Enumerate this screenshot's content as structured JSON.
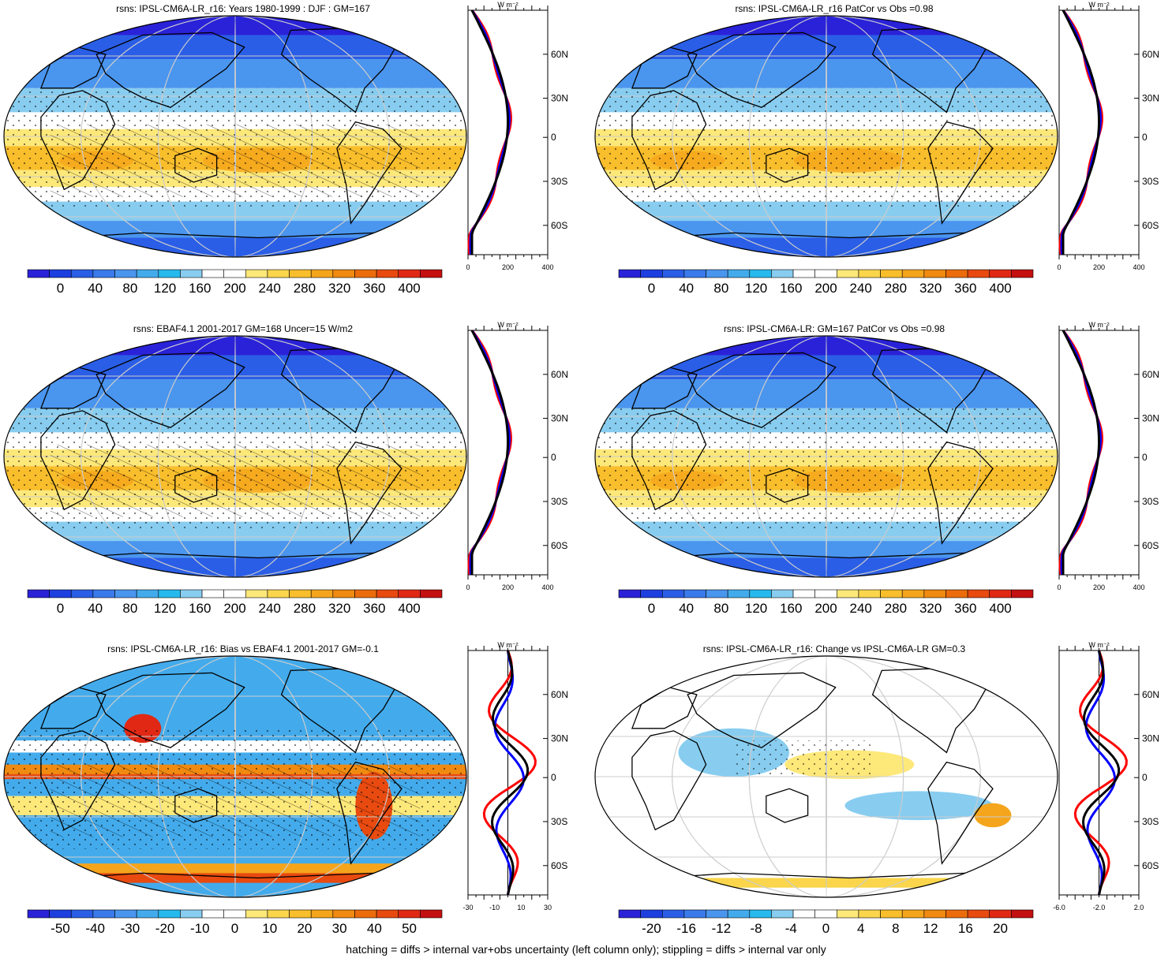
{
  "colors": {
    "abs": [
      "#2a22d8",
      "#1d3fe0",
      "#2a5ee6",
      "#3a7aea",
      "#4a95ee",
      "#43abec",
      "#26b9ee",
      "#88cdf0",
      "#ffffff",
      "#ffffff",
      "#fde87a",
      "#fbd64c",
      "#f9be2c",
      "#f5a51c",
      "#f08a10",
      "#ec6c0c",
      "#e84a10",
      "#e02814",
      "#c41010"
    ],
    "bias": [
      "#2a22d8",
      "#1d3fe0",
      "#2a5ee6",
      "#3a7aea",
      "#4a95ee",
      "#43abec",
      "#26b9ee",
      "#88cdf0",
      "#ffffff",
      "#ffffff",
      "#fde87a",
      "#fbd64c",
      "#f9be2c",
      "#f5a51c",
      "#f08a10",
      "#ec6c0c",
      "#e84a10",
      "#e02814",
      "#c41010"
    ],
    "ocean_cold": "#2f5fe4",
    "ocean_mid": "#4aa8ee",
    "warm": "#f9be2c",
    "land_outline": "#000000",
    "curve_model": "#ff0000",
    "curve_obs": "#0000ff",
    "curve_mean": "#000000"
  },
  "panels": [
    {
      "title": "rsns: IPSL-CM6A-LR_r16: Years 1980-1999 : DJF : GM=167",
      "kind": "abs",
      "colorbar_labels": [
        "0",
        "40",
        "80",
        "120",
        "160",
        "200",
        "240",
        "280",
        "320",
        "360",
        "400"
      ],
      "zonal_unit": "W m⁻²",
      "zonal_lat_labels": [
        "60N",
        "30N",
        "0",
        "30S",
        "60S"
      ],
      "zonal_x_labels": [
        "0",
        "200",
        "400"
      ]
    },
    {
      "title": "rsns: IPSL-CM6A-LR_r16 PatCor vs Obs =0.98",
      "kind": "abs",
      "colorbar_labels": [
        "0",
        "40",
        "80",
        "120",
        "160",
        "200",
        "240",
        "280",
        "320",
        "360",
        "400"
      ],
      "zonal_unit": "W m⁻²",
      "zonal_lat_labels": [
        "60N",
        "30N",
        "0",
        "30S",
        "60S"
      ],
      "zonal_x_labels": [
        "0",
        "200",
        "400"
      ]
    },
    {
      "title": "rsns: EBAF4.1 2001-2017 GM=168 Uncer=15 W/m2",
      "kind": "abs",
      "colorbar_labels": [
        "0",
        "40",
        "80",
        "120",
        "160",
        "200",
        "240",
        "280",
        "320",
        "360",
        "400"
      ],
      "zonal_unit": "W m⁻²",
      "zonal_lat_labels": [
        "60N",
        "30N",
        "0",
        "30S",
        "60S"
      ],
      "zonal_x_labels": [
        "0",
        "200",
        "400"
      ]
    },
    {
      "title": "rsns: IPSL-CM6A-LR: GM=167 PatCor vs Obs =0.98",
      "kind": "abs",
      "colorbar_labels": [
        "0",
        "40",
        "80",
        "120",
        "160",
        "200",
        "240",
        "280",
        "320",
        "360",
        "400"
      ],
      "zonal_unit": "W m⁻²",
      "zonal_lat_labels": [
        "60N",
        "30N",
        "0",
        "30S",
        "60S"
      ],
      "zonal_x_labels": [
        "0",
        "200",
        "400"
      ]
    },
    {
      "title": "rsns: IPSL-CM6A-LR_r16: Bias vs EBAF4.1 2001-2017 GM=-0.1",
      "kind": "bias",
      "colorbar_labels": [
        "-50",
        "-40",
        "-30",
        "-20",
        "-10",
        "0",
        "10",
        "20",
        "30",
        "40",
        "50"
      ],
      "zonal_unit": "W m⁻²",
      "zonal_lat_labels": [
        "60N",
        "30N",
        "0",
        "30S",
        "60S"
      ],
      "zonal_x_labels": [
        "-30",
        "-10",
        "10",
        "30"
      ]
    },
    {
      "title": "rsns: IPSL-CM6A-LR_r16: Change vs IPSL-CM6A-LR GM=0.3",
      "kind": "change",
      "colorbar_labels": [
        "-20",
        "-16",
        "-12",
        "-8",
        "-4",
        "0",
        "4",
        "8",
        "12",
        "16",
        "20"
      ],
      "zonal_unit": "W m⁻²",
      "zonal_lat_labels": [
        "60N",
        "30N",
        "0",
        "30S",
        "60S"
      ],
      "zonal_x_labels": [
        "-6.0",
        "-2.0",
        "2.0"
      ]
    }
  ],
  "footer": "hatching = diffs > internal var+obs uncertainty (left column only); stippling = diffs > internal var only"
}
